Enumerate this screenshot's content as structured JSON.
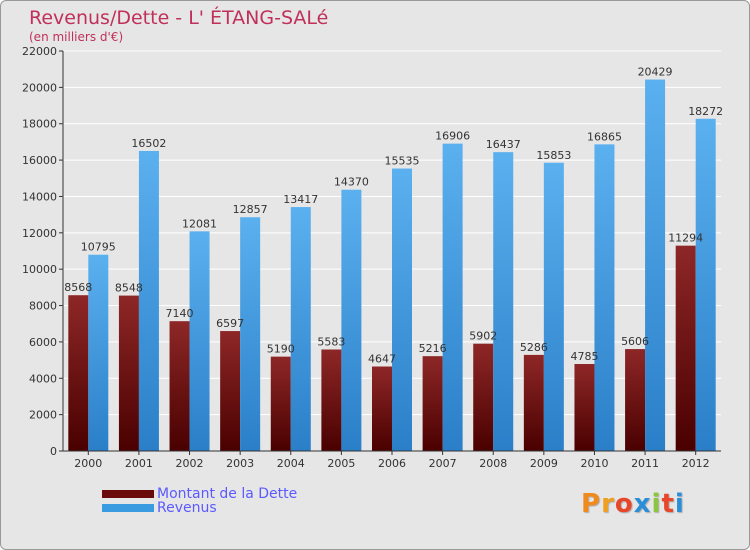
{
  "header": {
    "title": "Revenus/Dette - L' ÉTANG-SALé",
    "subtitle": "(en milliers d'€)"
  },
  "legend": {
    "debt_label": "Montant de la Dette",
    "revenue_label": "Revenus"
  },
  "logo": {
    "letters": [
      "P",
      "r",
      "o",
      "x",
      "i",
      "t",
      "i"
    ]
  },
  "colors": {
    "debt": "#6b0a0a",
    "revenue": "#3b9be0",
    "title": "#c0305a",
    "legend_text": "#5a5aff",
    "plot_bg": "#e6e6e6",
    "grid": "#ffffff",
    "logo": [
      "#f08a1c",
      "#f0a020",
      "#e8462a",
      "#2a8fd8",
      "#8cc63f",
      "#e8462a",
      "#2a8fd8"
    ]
  },
  "chart_data": {
    "type": "bar",
    "title": "Revenus/Dette - L' ÉTANG-SALé",
    "subtitle": "(en milliers d'€)",
    "categories": [
      "2000",
      "2001",
      "2002",
      "2003",
      "2004",
      "2005",
      "2006",
      "2007",
      "2008",
      "2009",
      "2010",
      "2011",
      "2012"
    ],
    "series": [
      {
        "name": "Montant de la Dette",
        "values": [
          8568,
          8548,
          7140,
          6597,
          5190,
          5583,
          4647,
          5216,
          5902,
          5286,
          4785,
          5606,
          11294
        ],
        "labels": [
          "8568",
          "8548",
          "7140",
          "6597",
          "5190",
          "5583",
          "4647",
          "5216",
          "5902",
          "5286",
          "4785",
          "5606",
          "11294"
        ]
      },
      {
        "name": "Revenus",
        "values": [
          10795,
          16502,
          12081,
          12857,
          13417,
          14370,
          15535,
          16906,
          16437,
          15853,
          16865,
          20429,
          18272
        ],
        "labels": [
          "10795",
          "16502",
          "12081",
          "12857",
          "13417",
          "14370",
          "15535",
          "16906",
          "16437",
          "15853",
          "16865",
          "20429",
          "18272"
        ]
      }
    ],
    "ylim": [
      0,
      22000
    ],
    "yticks": [
      0,
      2000,
      4000,
      6000,
      8000,
      10000,
      12000,
      14000,
      16000,
      18000,
      20000,
      22000
    ],
    "grid": true,
    "legend_position": "bottom-left"
  }
}
